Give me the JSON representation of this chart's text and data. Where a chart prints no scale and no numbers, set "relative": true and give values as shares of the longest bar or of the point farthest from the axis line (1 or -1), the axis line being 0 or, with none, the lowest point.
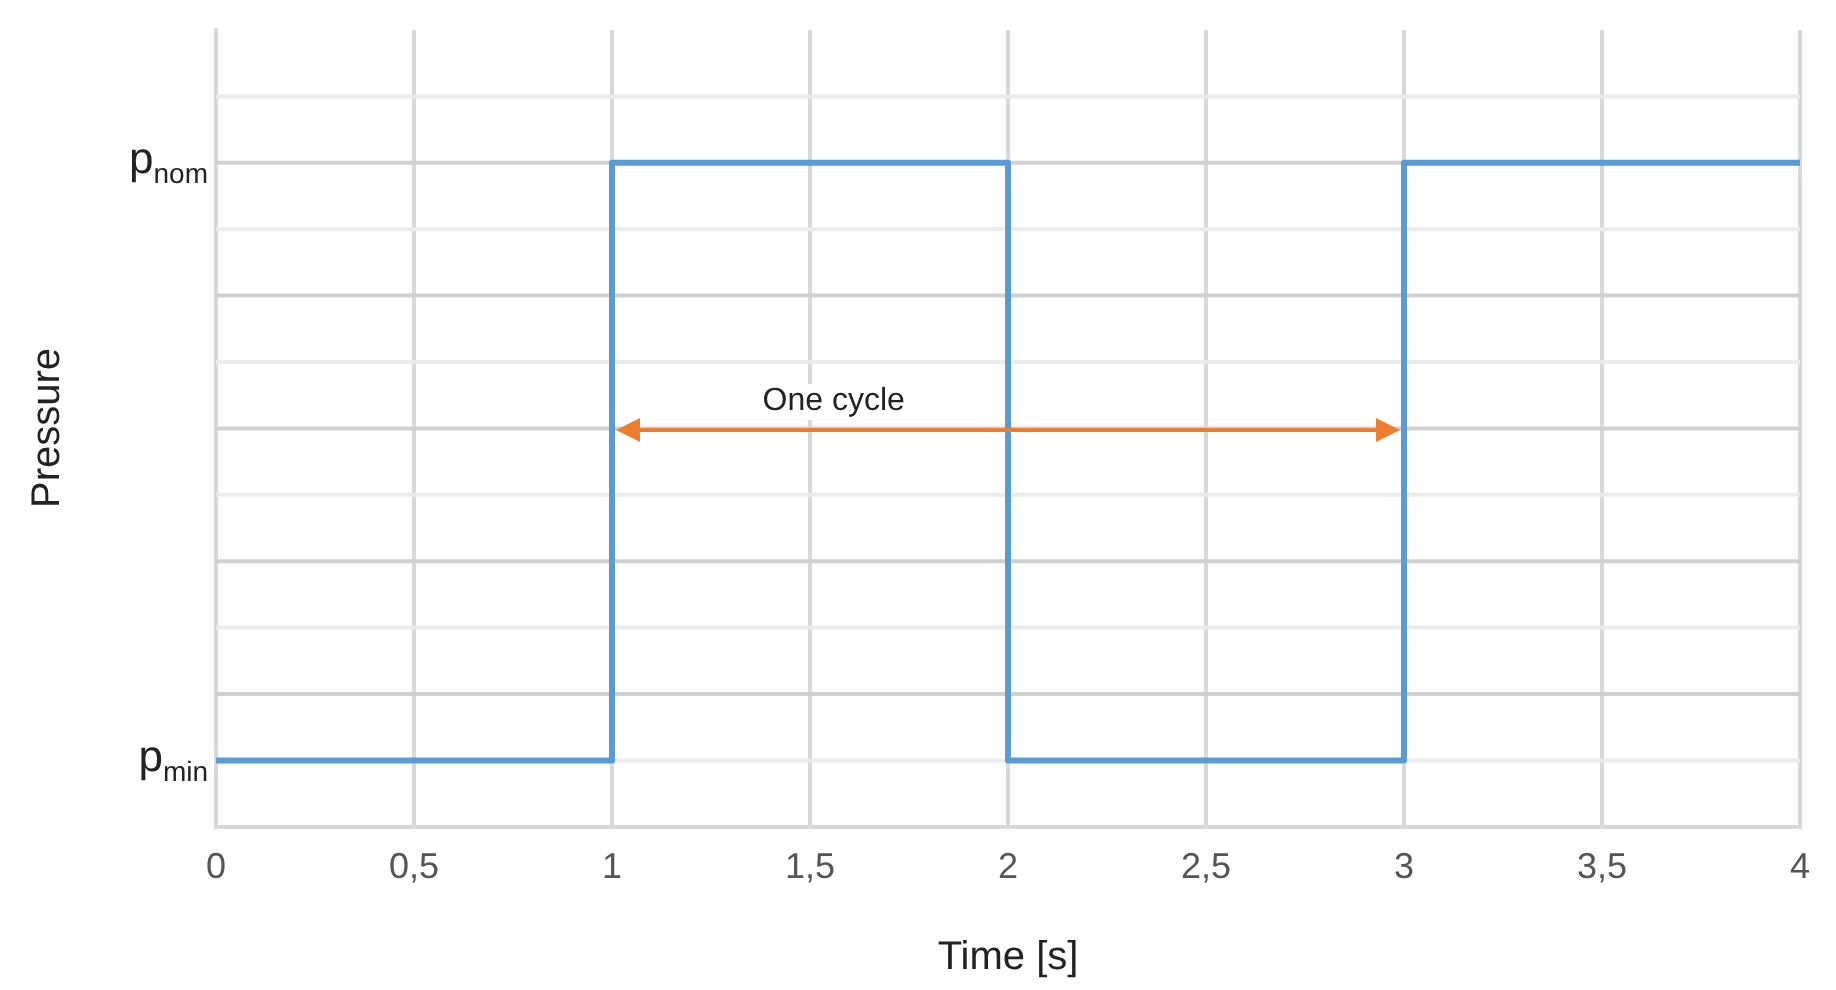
{
  "chart_data": {
    "type": "step",
    "xlabel": "Time [s]",
    "ylabel": "Pressure",
    "x": [
      0,
      1,
      2,
      3,
      4
    ],
    "series": [
      {
        "color": "#5b9bd5",
        "values": [
          0,
          1,
          0,
          1,
          1
        ]
      }
    ],
    "relative": true,
    "xlim": [
      0,
      4
    ],
    "xticks": [
      0,
      {
        "value": 0.5,
        "label": "0,5"
      },
      1,
      {
        "value": 1.5,
        "label": "1,5"
      },
      2,
      {
        "value": 2.5,
        "label": "2,5"
      },
      3,
      {
        "value": 3.5,
        "label": "3,5"
      },
      4
    ],
    "annotations": [
      "One cycle",
      "p$_{min}$",
      "p$_{nom}$"
    ],
    "grid": true,
    "legend": false,
    "marker": "none",
    "line_style": "solid"
  }
}
